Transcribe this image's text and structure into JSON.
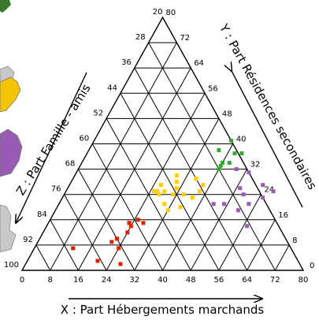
{
  "chart_data": {
    "type": "scatter",
    "subtype": "ternary",
    "axes": {
      "x": {
        "label": "X : Part Hébergements marchands",
        "range": [
          0,
          80
        ],
        "ticks": [
          "0",
          "8",
          "16",
          "24",
          "32",
          "40",
          "48",
          "56",
          "64",
          "72",
          "80"
        ]
      },
      "y": {
        "label": "Y : Part Résidences secondaires",
        "range": [
          0,
          80
        ],
        "ticks": [
          "0",
          "8",
          "16",
          "24",
          "32",
          "40",
          "48",
          "56",
          "64",
          "72",
          "80"
        ]
      },
      "z": {
        "label": "Z : Part Famille - amis",
        "range": [
          20,
          100
        ],
        "ticks": [
          "20",
          "28",
          "36",
          "44",
          "52",
          "60",
          "68",
          "76",
          "84",
          "92",
          "100"
        ]
      }
    },
    "grid": true,
    "series": [
      {
        "color": "#33aa33",
        "points": [
          {
            "x": 39,
            "y": 41
          },
          {
            "x": 37,
            "y": 38
          },
          {
            "x": 42,
            "y": 37
          },
          {
            "x": 40,
            "y": 34
          },
          {
            "x": 40,
            "y": 32
          },
          {
            "x": 42,
            "y": 34
          },
          {
            "x": 44,
            "y": 37
          },
          {
            "x": 40,
            "y": 33
          }
        ]
      },
      {
        "color": "#ffcc00",
        "points": [
          {
            "x": 25,
            "y": 25
          },
          {
            "x": 28,
            "y": 25
          },
          {
            "x": 31,
            "y": 24
          },
          {
            "x": 29,
            "y": 30
          },
          {
            "x": 30,
            "y": 28
          },
          {
            "x": 26,
            "y": 27
          },
          {
            "x": 26,
            "y": 25
          },
          {
            "x": 27,
            "y": 24
          },
          {
            "x": 34,
            "y": 24
          },
          {
            "x": 30,
            "y": 21
          },
          {
            "x": 35,
            "y": 20
          },
          {
            "x": 32,
            "y": 19
          },
          {
            "x": 35,
            "y": 29
          },
          {
            "x": 38,
            "y": 25
          },
          {
            "x": 37,
            "y": 23
          },
          {
            "x": 31,
            "y": 26
          },
          {
            "x": 38,
            "y": 27
          }
        ]
      },
      {
        "color": "#9a5bb5",
        "points": [
          {
            "x": 45,
            "y": 32
          },
          {
            "x": 49,
            "y": 31
          },
          {
            "x": 49,
            "y": 26
          },
          {
            "x": 51,
            "y": 24
          },
          {
            "x": 52,
            "y": 19
          },
          {
            "x": 47,
            "y": 21
          },
          {
            "x": 44,
            "y": 21
          },
          {
            "x": 55,
            "y": 27
          },
          {
            "x": 59,
            "y": 25
          },
          {
            "x": 57,
            "y": 23
          },
          {
            "x": 54,
            "y": 21
          },
          {
            "x": 57,
            "y": 14
          }
        ]
      },
      {
        "color": "#dd2200",
        "points": [
          {
            "x": 23,
            "y": 15
          },
          {
            "x": 24,
            "y": 14
          },
          {
            "x": 24,
            "y": 12
          },
          {
            "x": 27,
            "y": 15
          },
          {
            "x": 21,
            "y": 9
          },
          {
            "x": 24,
            "y": 7
          },
          {
            "x": 11,
            "y": 7
          },
          {
            "x": 20,
            "y": 3
          },
          {
            "x": 27,
            "y": 2
          },
          {
            "x": 22,
            "y": 10
          },
          {
            "x": 25,
            "y": 16
          },
          {
            "x": 23,
            "y": 15
          }
        ]
      }
    ]
  }
}
